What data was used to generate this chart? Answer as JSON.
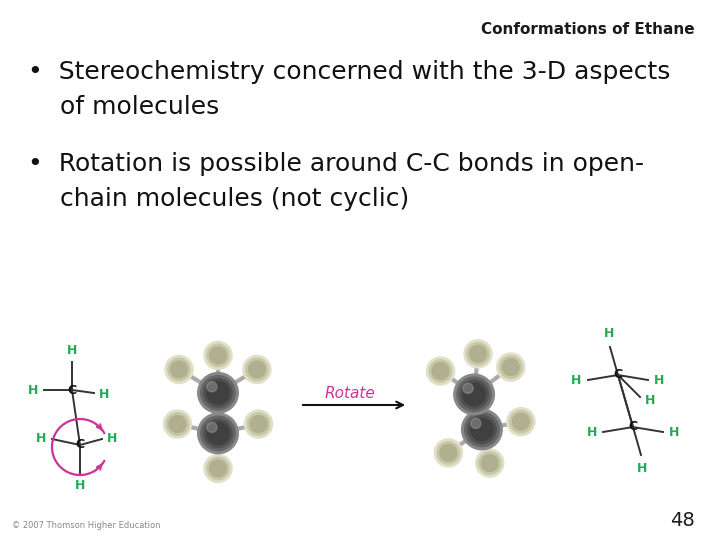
{
  "title": "Conformations of Ethane",
  "title_fontsize": 11,
  "title_color": "#1a1a1a",
  "bullet1_line1": "•  Stereochemistry concerned with the 3-D aspects",
  "bullet1_line2": "    of molecules",
  "bullet2_line1": "•  Rotation is possible around C-C bonds in open-",
  "bullet2_line2": "    chain molecules (not cyclic)",
  "bullet_fontsize": 18,
  "bullet_color": "#111111",
  "rotate_label": "Rotate",
  "rotate_color": "#cc3399",
  "page_number": "48",
  "page_fontsize": 14,
  "copyright": "© 2007 Thomson Higher Education",
  "copyright_fontsize": 6,
  "background_color": "#ffffff",
  "h_color": "#22aa55",
  "c_color": "#111111",
  "bond_color": "#333333",
  "arrow_color": "#cc3399",
  "dark_ball": "#555558",
  "light_ball": "#c8c8a8",
  "stick_color": "#aaaaaa"
}
